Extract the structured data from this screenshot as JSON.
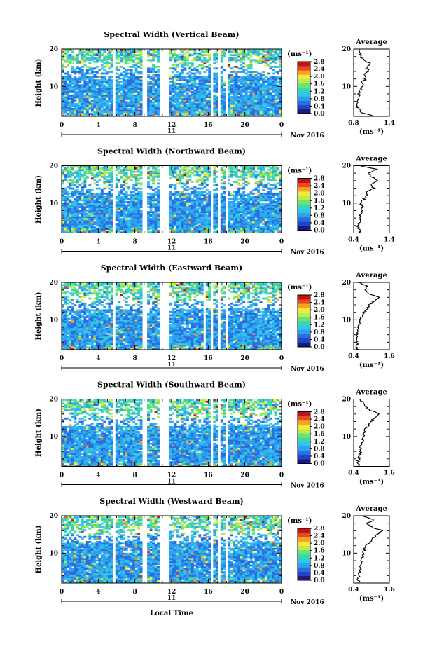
{
  "figure": {
    "xlabel": "Local Time",
    "date_label": "Nov 2016",
    "day_label": "11",
    "ylabel": "Height (km)",
    "avg_title": "Average",
    "unit": "(ms⁻¹)",
    "colors": {
      "scale": [
        "#1a1a7a",
        "#2244cc",
        "#2a6fe0",
        "#2fa0f0",
        "#31c6e8",
        "#36d8b0",
        "#70e070",
        "#b8ec50",
        "#f4e83a",
        "#f6a028",
        "#e84a20",
        "#c01414"
      ],
      "missing": "#ffffff"
    }
  },
  "chart_data": [
    {
      "type": "heatmap",
      "title": "Spectral Width (Vertical Beam)",
      "xlabel": "Local Time",
      "ylabel": "Height (km)",
      "xlim": [
        0,
        24
      ],
      "ylim": [
        2,
        20
      ],
      "x_ticks": [
        "0",
        "4",
        "8",
        "12",
        "16",
        "20",
        "0"
      ],
      "y_ticks": [
        "10",
        "20"
      ],
      "colorbar": {
        "label": "(ms⁻¹)",
        "range": [
          0.0,
          2.8
        ],
        "ticks": [
          "0.0",
          "0.4",
          "0.8",
          "1.2",
          "1.6",
          "2.0",
          "2.4",
          "2.8"
        ]
      },
      "data_gaps_hours": [
        [
          5.6,
          5.9
        ],
        [
          8.9,
          9.3
        ],
        [
          10.6,
          11.8
        ],
        [
          16.3,
          16.6
        ],
        [
          17.1,
          17.3
        ],
        [
          17.8,
          18.0
        ]
      ],
      "profile": {
        "title": "Average",
        "xlabel": "(ms⁻¹)",
        "xlim": [
          0.8,
          1.4
        ],
        "x_ticks": [
          "0.8",
          "1.4"
        ],
        "y_ticks": [
          "10",
          "20"
        ],
        "height_km": [
          2,
          3,
          4,
          5,
          6,
          7,
          8,
          9,
          10,
          11,
          12,
          13,
          14,
          15,
          16,
          17,
          18,
          19,
          20
        ],
        "width_ms": [
          1.15,
          0.95,
          0.88,
          0.84,
          0.86,
          0.9,
          0.89,
          0.92,
          0.95,
          0.93,
          1.0,
          0.97,
          1.05,
          1.02,
          1.1,
          0.98,
          0.92,
          0.9,
          0.88
        ]
      }
    },
    {
      "type": "heatmap",
      "title": "Spectral Width (Northward Beam)",
      "xlabel": "Local Time",
      "ylabel": "Height (km)",
      "xlim": [
        0,
        24
      ],
      "ylim": [
        2,
        20
      ],
      "x_ticks": [
        "0",
        "4",
        "8",
        "12",
        "16",
        "20",
        "0"
      ],
      "y_ticks": [
        "10",
        "20"
      ],
      "colorbar": {
        "label": "(ms⁻¹)",
        "range": [
          0.0,
          2.8
        ],
        "ticks": [
          "0.0",
          "0.4",
          "0.8",
          "1.2",
          "1.6",
          "2.0",
          "2.4",
          "2.8"
        ]
      },
      "data_gaps_hours": [
        [
          5.6,
          5.9
        ],
        [
          8.9,
          9.3
        ],
        [
          10.6,
          11.8
        ],
        [
          16.3,
          16.6
        ],
        [
          17.1,
          17.3
        ],
        [
          17.8,
          18.0
        ]
      ],
      "profile": {
        "title": "Average",
        "xlabel": "(ms⁻¹)",
        "xlim": [
          0.4,
          1.4
        ],
        "x_ticks": [
          "0.4",
          "1.4"
        ],
        "y_ticks": [
          "10",
          "20"
        ],
        "height_km": [
          2,
          3,
          4,
          5,
          6,
          7,
          8,
          9,
          10,
          11,
          12,
          13,
          14,
          15,
          16,
          17,
          18,
          19,
          20
        ],
        "width_ms": [
          0.6,
          0.55,
          0.52,
          0.58,
          0.55,
          0.6,
          0.62,
          0.65,
          0.6,
          0.68,
          0.75,
          0.8,
          0.95,
          0.88,
          1.1,
          0.9,
          0.78,
          1.05,
          0.6
        ]
      }
    },
    {
      "type": "heatmap",
      "title": "Spectral Width (Eastward Beam)",
      "xlabel": "Local Time",
      "ylabel": "Height (km)",
      "xlim": [
        0,
        24
      ],
      "ylim": [
        2,
        20
      ],
      "x_ticks": [
        "0",
        "4",
        "8",
        "12",
        "16",
        "20",
        "0"
      ],
      "y_ticks": [
        "10",
        "20"
      ],
      "colorbar": {
        "label": "(ms⁻¹)",
        "range": [
          0.0,
          2.8
        ],
        "ticks": [
          "0.0",
          "0.4",
          "0.8",
          "1.2",
          "1.6",
          "2.0",
          "2.4",
          "2.8"
        ]
      },
      "data_gaps_hours": [
        [
          5.6,
          5.9
        ],
        [
          8.9,
          9.3
        ],
        [
          10.6,
          11.8
        ],
        [
          15.6,
          15.8
        ],
        [
          16.3,
          16.6
        ],
        [
          17.1,
          17.3
        ],
        [
          17.8,
          18.0
        ]
      ],
      "profile": {
        "title": "Average",
        "xlabel": "(ms⁻¹)",
        "xlim": [
          0.4,
          1.6
        ],
        "x_ticks": [
          "0.4",
          "1.6"
        ],
        "y_ticks": [
          "10",
          "20"
        ],
        "height_km": [
          2,
          3,
          4,
          5,
          6,
          7,
          8,
          9,
          10,
          11,
          12,
          13,
          14,
          15,
          16,
          17,
          18,
          19,
          20
        ],
        "width_ms": [
          0.55,
          0.5,
          0.52,
          0.55,
          0.53,
          0.56,
          0.58,
          0.6,
          0.62,
          0.7,
          0.75,
          0.85,
          0.95,
          1.1,
          1.3,
          0.9,
          0.75,
          0.85,
          0.6
        ]
      }
    },
    {
      "type": "heatmap",
      "title": "Spectral Width (Southward Beam)",
      "xlabel": "Local Time",
      "ylabel": "Height (km)",
      "xlim": [
        0,
        24
      ],
      "ylim": [
        2,
        20
      ],
      "x_ticks": [
        "0",
        "4",
        "8",
        "12",
        "16",
        "20",
        "0"
      ],
      "y_ticks": [
        "10",
        "20"
      ],
      "colorbar": {
        "label": "(ms⁻¹)",
        "range": [
          0.0,
          2.8
        ],
        "ticks": [
          "0.0",
          "0.4",
          "0.8",
          "1.2",
          "1.6",
          "2.0",
          "2.4",
          "2.8"
        ]
      },
      "data_gaps_hours": [
        [
          5.6,
          5.9
        ],
        [
          8.9,
          9.3
        ],
        [
          10.6,
          11.8
        ],
        [
          16.3,
          16.6
        ],
        [
          17.1,
          17.3
        ],
        [
          17.8,
          18.0
        ]
      ],
      "profile": {
        "title": "Average",
        "xlabel": "(ms⁻¹)",
        "xlim": [
          0.4,
          1.6
        ],
        "x_ticks": [
          "0.4",
          "1.6"
        ],
        "y_ticks": [
          "10",
          "20"
        ],
        "height_km": [
          2,
          3,
          4,
          5,
          6,
          7,
          8,
          9,
          10,
          11,
          12,
          13,
          14,
          15,
          16,
          17,
          18,
          19,
          20
        ],
        "width_ms": [
          0.6,
          0.55,
          0.58,
          0.6,
          0.62,
          0.65,
          0.66,
          0.7,
          0.72,
          0.75,
          0.8,
          0.9,
          1.0,
          1.1,
          1.25,
          0.95,
          0.8,
          0.75,
          0.6
        ]
      }
    },
    {
      "type": "heatmap",
      "title": "Spectral Width (Westward Beam)",
      "xlabel": "Local Time",
      "ylabel": "Height (km)",
      "xlim": [
        0,
        24
      ],
      "ylim": [
        2,
        20
      ],
      "x_ticks": [
        "0",
        "4",
        "8",
        "12",
        "16",
        "20",
        "0"
      ],
      "y_ticks": [
        "10",
        "20"
      ],
      "colorbar": {
        "label": "(ms⁻¹)",
        "range": [
          0.0,
          2.8
        ],
        "ticks": [
          "0.0",
          "0.4",
          "0.8",
          "1.2",
          "1.6",
          "2.0",
          "2.4",
          "2.8"
        ]
      },
      "data_gaps_hours": [
        [
          5.6,
          5.9
        ],
        [
          8.9,
          9.3
        ],
        [
          10.6,
          11.8
        ],
        [
          16.3,
          16.6
        ],
        [
          17.1,
          17.3
        ],
        [
          17.8,
          18.0
        ]
      ],
      "profile": {
        "title": "Average",
        "xlabel": "(ms⁻¹)",
        "xlim": [
          0.4,
          1.6
        ],
        "x_ticks": [
          "0.4",
          "1.6"
        ],
        "y_ticks": [
          "10",
          "20"
        ],
        "height_km": [
          2,
          3,
          4,
          5,
          6,
          7,
          8,
          9,
          10,
          11,
          12,
          13,
          14,
          15,
          16,
          17,
          18,
          19,
          20
        ],
        "width_ms": [
          0.58,
          0.55,
          0.56,
          0.6,
          0.62,
          0.64,
          0.68,
          0.7,
          0.72,
          0.76,
          0.82,
          0.95,
          1.05,
          1.2,
          1.35,
          1.0,
          0.85,
          1.1,
          0.65
        ]
      }
    }
  ]
}
